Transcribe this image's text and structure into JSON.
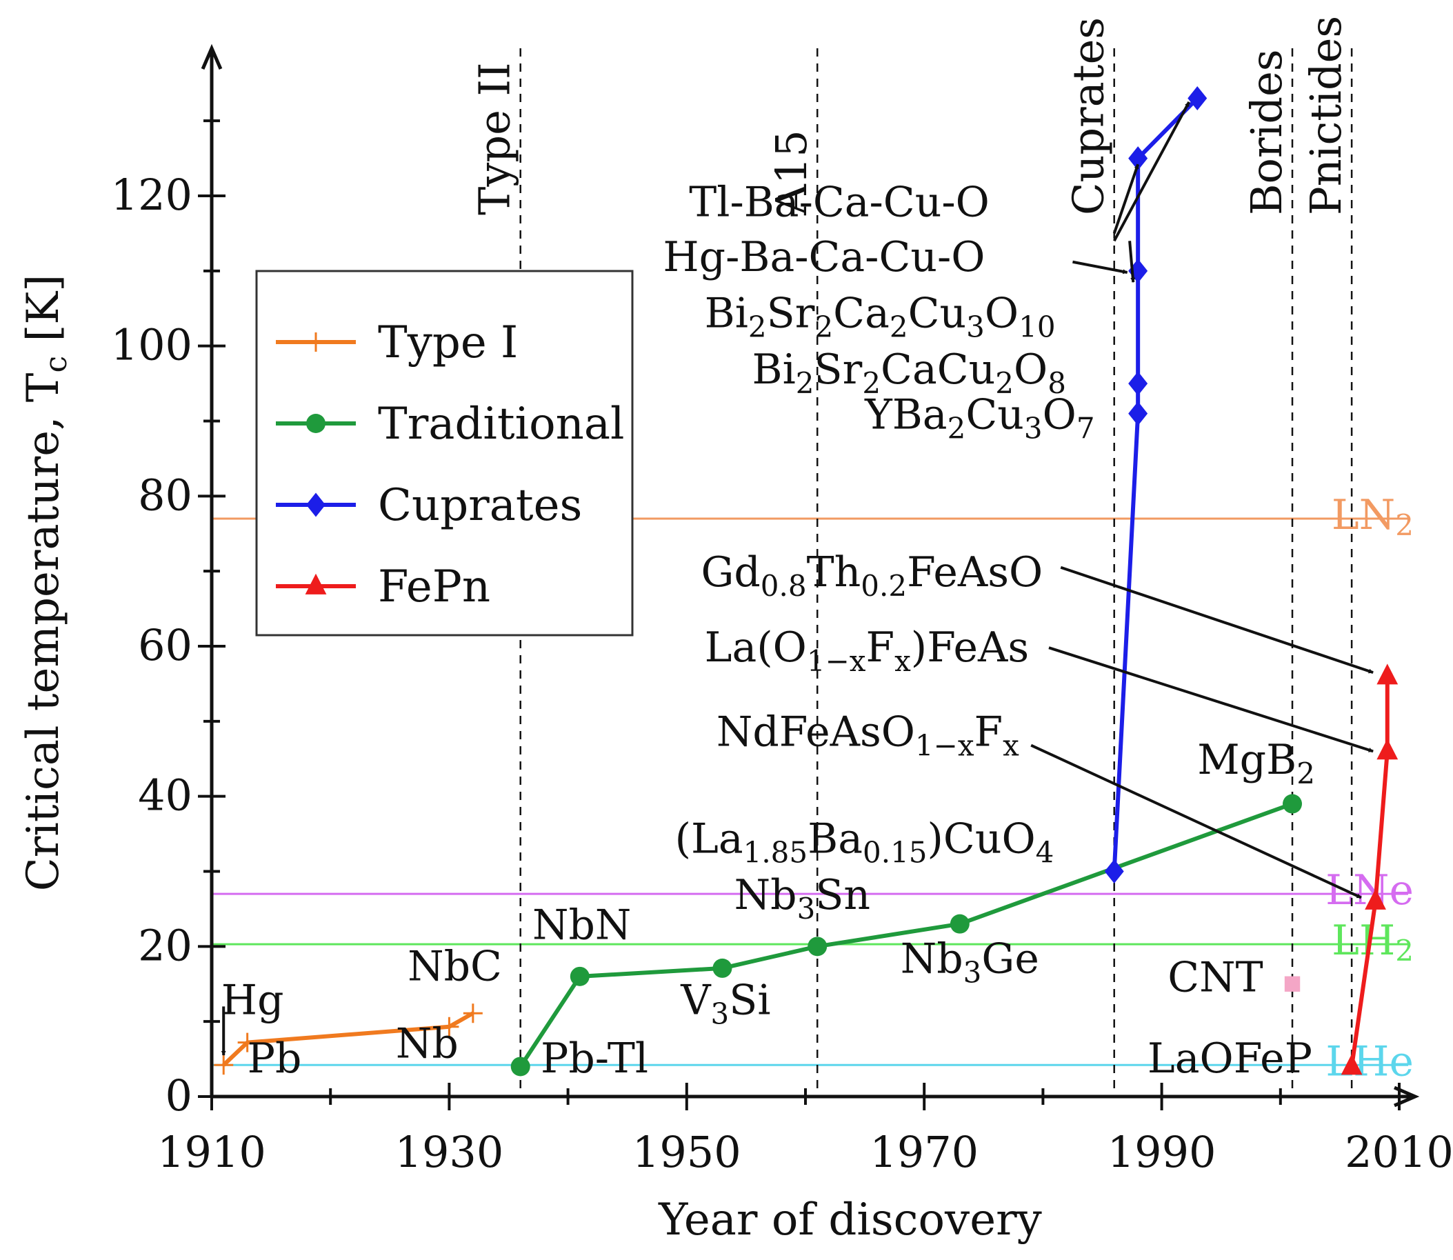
{
  "chart_data": {
    "type": "line",
    "title": "",
    "xlabel": "Year of discovery",
    "ylabel": "Critical temperature, T",
    "ylabel_sub": "c",
    "ylabel_unit": " [K]",
    "xlim": [
      1910,
      2018
    ],
    "ylim": [
      0,
      136
    ],
    "xticks": [
      1910,
      1930,
      1950,
      1970,
      1990,
      2010
    ],
    "xticks_minor": [
      1920,
      1940,
      1960,
      1980,
      2000
    ],
    "yticks": [
      0,
      20,
      40,
      60,
      80,
      100,
      120
    ],
    "yticks_minor": [
      10,
      30,
      50,
      70,
      90,
      110,
      130
    ],
    "grid": false,
    "legend_position": "upper-left",
    "series": [
      {
        "name": "Type I",
        "color": "#f07a1f",
        "marker": "plus",
        "x": [
          1911,
          1913,
          1930,
          1932
        ],
        "y": [
          4.2,
          7.2,
          9.3,
          11.1
        ]
      },
      {
        "name": "Traditional",
        "color": "#1f9a3c",
        "marker": "circle",
        "x": [
          1936,
          1941,
          1953,
          1961,
          1973,
          2001
        ],
        "y": [
          4,
          16,
          17.1,
          20,
          23,
          39
        ]
      },
      {
        "name": "Cuprates",
        "color": "#1c1ee8",
        "marker": "diamond",
        "x": [
          1986,
          1988,
          1988,
          1988,
          1988,
          1993
        ],
        "y": [
          30,
          91,
          95,
          110,
          125,
          133
        ]
      },
      {
        "name": "FePn",
        "color": "#ee1c1c",
        "marker": "triangle",
        "x": [
          2006,
          2008,
          2009,
          2009
        ],
        "y": [
          4,
          26,
          46,
          56
        ]
      }
    ],
    "extra_points": [
      {
        "label": "CNT",
        "x": 2001,
        "y": 15,
        "color": "#f4a6c6",
        "marker": "square"
      }
    ],
    "reference_lines": [
      {
        "label": "LN",
        "sub": "2",
        "y": 77,
        "color": "#f29a62"
      },
      {
        "label": "LNe",
        "sub": "",
        "y": 27,
        "color": "#d56cf0"
      },
      {
        "label": "LH",
        "sub": "2",
        "y": 20.3,
        "color": "#5ee65c"
      },
      {
        "label": "LHe",
        "sub": "",
        "y": 4.2,
        "color": "#5cd6ec"
      }
    ],
    "era_lines": [
      {
        "label": "Type II",
        "x": 1936
      },
      {
        "label": "A15",
        "x": 1961
      },
      {
        "label": "Cuprates",
        "x": 1986
      },
      {
        "label": "Borides",
        "x": 2001
      },
      {
        "label": "Pnictides",
        "x": 2006
      }
    ],
    "annotations": [
      {
        "id": "hg",
        "parts": [
          [
            "Hg",
            ""
          ]
        ],
        "x": 1910.8,
        "y": 11
      },
      {
        "id": "pb",
        "parts": [
          [
            "Pb",
            ""
          ]
        ],
        "x": 1913,
        "y": 3.2
      },
      {
        "id": "nb",
        "parts": [
          [
            "Nb",
            ""
          ]
        ],
        "x": 1925.5,
        "y": 5.2
      },
      {
        "id": "nbc",
        "parts": [
          [
            "NbC",
            ""
          ]
        ],
        "x": 1926.5,
        "y": 15.5
      },
      {
        "id": "pbtl",
        "parts": [
          [
            "Pb-Tl",
            ""
          ]
        ],
        "x": 1937.7,
        "y": 3.2
      },
      {
        "id": "nbn",
        "parts": [
          [
            "NbN",
            ""
          ]
        ],
        "x": 1937,
        "y": 21
      },
      {
        "id": "v3si",
        "parts": [
          [
            "V",
            ""
          ],
          [
            "3",
            "sub"
          ],
          [
            "Si",
            ""
          ]
        ],
        "x": 1949.5,
        "y": 11
      },
      {
        "id": "nb3sn",
        "parts": [
          [
            "Nb",
            ""
          ],
          [
            "3",
            "sub"
          ],
          [
            "Sn",
            ""
          ]
        ],
        "x": 1954,
        "y": 25
      },
      {
        "id": "nb3ge",
        "parts": [
          [
            "Nb",
            ""
          ],
          [
            "3",
            "sub"
          ],
          [
            "Ge",
            ""
          ]
        ],
        "x": 1968,
        "y": 16.5
      },
      {
        "id": "labacuo",
        "parts": [
          [
            "(La",
            ""
          ],
          [
            "1.85",
            "sub"
          ],
          [
            "Ba",
            ""
          ],
          [
            "0.15",
            "sub"
          ],
          [
            ")CuO",
            ""
          ],
          [
            "4",
            "sub"
          ]
        ],
        "x": 1949,
        "y": 32.5
      },
      {
        "id": "ybco",
        "parts": [
          [
            "YBa",
            ""
          ],
          [
            "2",
            "sub"
          ],
          [
            "Cu",
            ""
          ],
          [
            "3",
            "sub"
          ],
          [
            "O",
            ""
          ],
          [
            "7",
            "sub"
          ]
        ],
        "x": 1965,
        "y": 89
      },
      {
        "id": "bscco2212",
        "parts": [
          [
            "Bi",
            ""
          ],
          [
            "2",
            "sub"
          ],
          [
            "Sr",
            ""
          ],
          [
            "2",
            "sub"
          ],
          [
            "CaCu",
            ""
          ],
          [
            "2",
            "sub"
          ],
          [
            "O",
            ""
          ],
          [
            "8",
            "sub"
          ]
        ],
        "x": 1955.5,
        "y": 95
      },
      {
        "id": "bscco2223",
        "parts": [
          [
            "Bi",
            ""
          ],
          [
            "2",
            "sub"
          ],
          [
            "Sr",
            ""
          ],
          [
            "2",
            "sub"
          ],
          [
            "Ca",
            ""
          ],
          [
            "2",
            "sub"
          ],
          [
            "Cu",
            ""
          ],
          [
            "3",
            "sub"
          ],
          [
            "O",
            ""
          ],
          [
            "10",
            "sub"
          ]
        ],
        "x": 1951.5,
        "y": 102.5
      },
      {
        "id": "hgbacacuo",
        "parts": [
          [
            "Hg-Ba-Ca-Cu-O",
            ""
          ]
        ],
        "x": 1948,
        "y": 110
      },
      {
        "id": "tlbacacuo",
        "parts": [
          [
            "Tl-Ba-Ca-Cu-O",
            ""
          ]
        ],
        "x": 1950.2,
        "y": 117.3
      },
      {
        "id": "mgb2",
        "parts": [
          [
            "MgB",
            ""
          ],
          [
            "2",
            "sub"
          ]
        ],
        "x": 1993,
        "y": 43
      },
      {
        "id": "cnt",
        "parts": [
          [
            "CNT",
            ""
          ]
        ],
        "x": 1990.5,
        "y": 14
      },
      {
        "id": "laofep",
        "parts": [
          [
            "LaOFeP",
            ""
          ]
        ],
        "x": 1988.8,
        "y": 3.2
      },
      {
        "id": "gdthfeaso",
        "parts": [
          [
            "Gd",
            ""
          ],
          [
            "0.8",
            "sub"
          ],
          [
            "Th",
            ""
          ],
          [
            "0.2",
            "sub"
          ],
          [
            "FeAsO",
            ""
          ]
        ],
        "x": 1951.2,
        "y": 68
      },
      {
        "id": "laofeas",
        "parts": [
          [
            "La(O",
            ""
          ],
          [
            "1−x",
            "sub"
          ],
          [
            "F",
            ""
          ],
          [
            "x",
            "sub"
          ],
          [
            ")FeAs",
            ""
          ]
        ],
        "x": 1951.5,
        "y": 58
      },
      {
        "id": "ndfeaso",
        "parts": [
          [
            "NdFeAsO",
            ""
          ],
          [
            "1−x",
            "sub"
          ],
          [
            "F",
            ""
          ],
          [
            "x",
            "sub"
          ]
        ],
        "x": 1952.5,
        "y": 46.7
      }
    ],
    "arrows": [
      {
        "from": [
          1911,
          12
        ],
        "to": [
          1911,
          5.5
        ]
      },
      {
        "from": [
          1986,
          115
        ],
        "to": [
          1988,
          124.2
        ]
      },
      {
        "from": [
          1986,
          114
        ],
        "to": [
          1992.3,
          132.5
        ]
      },
      {
        "from": [
          1982.5,
          111.2
        ],
        "to": [
          1987.1,
          109.8
        ]
      },
      {
        "from": [
          1987.3,
          114
        ],
        "to": [
          1987.6,
          108.5
        ]
      },
      {
        "from": [
          1981.5,
          70.5
        ],
        "to": [
          2007.8,
          56.5
        ]
      },
      {
        "from": [
          1980.5,
          59.8
        ],
        "to": [
          2007.8,
          46
        ]
      },
      {
        "from": [
          1979,
          46.8
        ],
        "to": [
          2006.8,
          26.5
        ]
      }
    ]
  }
}
